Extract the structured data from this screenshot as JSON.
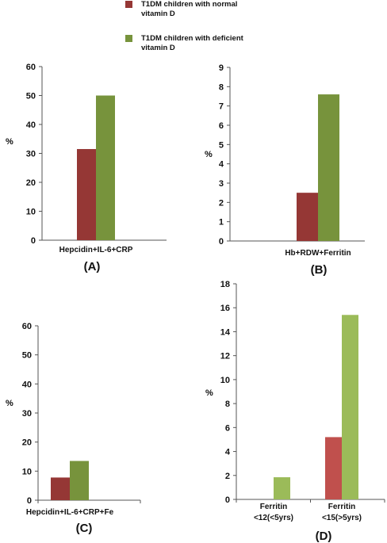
{
  "legend": [
    {
      "label_line1": "T1DM children with normal",
      "label_line2": "vitamin D",
      "color": "#953735"
    },
    {
      "label_line1": "T1DM children with deficient",
      "label_line2": "vitamin D",
      "color": "#77933C"
    }
  ],
  "chart_data": [
    {
      "type": "bar",
      "panel_label": "(A)",
      "ylabel": "%",
      "ylim": [
        0,
        60
      ],
      "yticks": [
        0,
        10,
        20,
        30,
        40,
        50,
        60
      ],
      "categories": [
        "Hepcidin+IL-6+CRP"
      ],
      "series": [
        {
          "name": "T1DM children with normal vitamin D",
          "values": [
            31.5
          ],
          "color": "#953735"
        },
        {
          "name": "T1DM children with deficient vitamin D",
          "values": [
            50
          ],
          "color": "#77933C"
        }
      ]
    },
    {
      "type": "bar",
      "panel_label": "(B)",
      "ylabel": "%",
      "ylim": [
        0,
        9
      ],
      "yticks": [
        0,
        1,
        2,
        3,
        4,
        5,
        6,
        7,
        8,
        9
      ],
      "categories": [
        "Hb+RDW+Ferritin"
      ],
      "series": [
        {
          "name": "T1DM children with normal vitamin D",
          "values": [
            2.5
          ],
          "color": "#953735"
        },
        {
          "name": "T1DM children with deficient vitamin D",
          "values": [
            7.6
          ],
          "color": "#77933C"
        }
      ]
    },
    {
      "type": "bar",
      "panel_label": "(C)",
      "ylabel": "%",
      "ylim": [
        0,
        60
      ],
      "yticks": [
        0,
        10,
        20,
        30,
        40,
        50,
        60
      ],
      "categories": [
        "Hepcidin+IL-6+CRP+Fe"
      ],
      "series": [
        {
          "name": "T1DM children with normal vitamin D",
          "values": [
            7.8
          ],
          "color": "#953735"
        },
        {
          "name": "T1DM children with deficient vitamin D",
          "values": [
            13.5
          ],
          "color": "#77933C"
        }
      ]
    },
    {
      "type": "bar",
      "panel_label": "(D)",
      "ylabel": "%",
      "ylim": [
        0,
        18
      ],
      "yticks": [
        0,
        2,
        4,
        6,
        8,
        10,
        12,
        14,
        16,
        18
      ],
      "categories": [
        [
          "Ferritin",
          "<12(<5yrs)"
        ],
        [
          "Ferritin",
          "<15(>5yrs)"
        ]
      ],
      "series": [
        {
          "name": "T1DM children with normal vitamin D",
          "values": [
            0,
            5.2
          ],
          "color": "#C0504D"
        },
        {
          "name": "T1DM children with deficient vitamin D",
          "values": [
            1.85,
            15.4
          ],
          "color": "#9BBB59"
        }
      ]
    }
  ]
}
